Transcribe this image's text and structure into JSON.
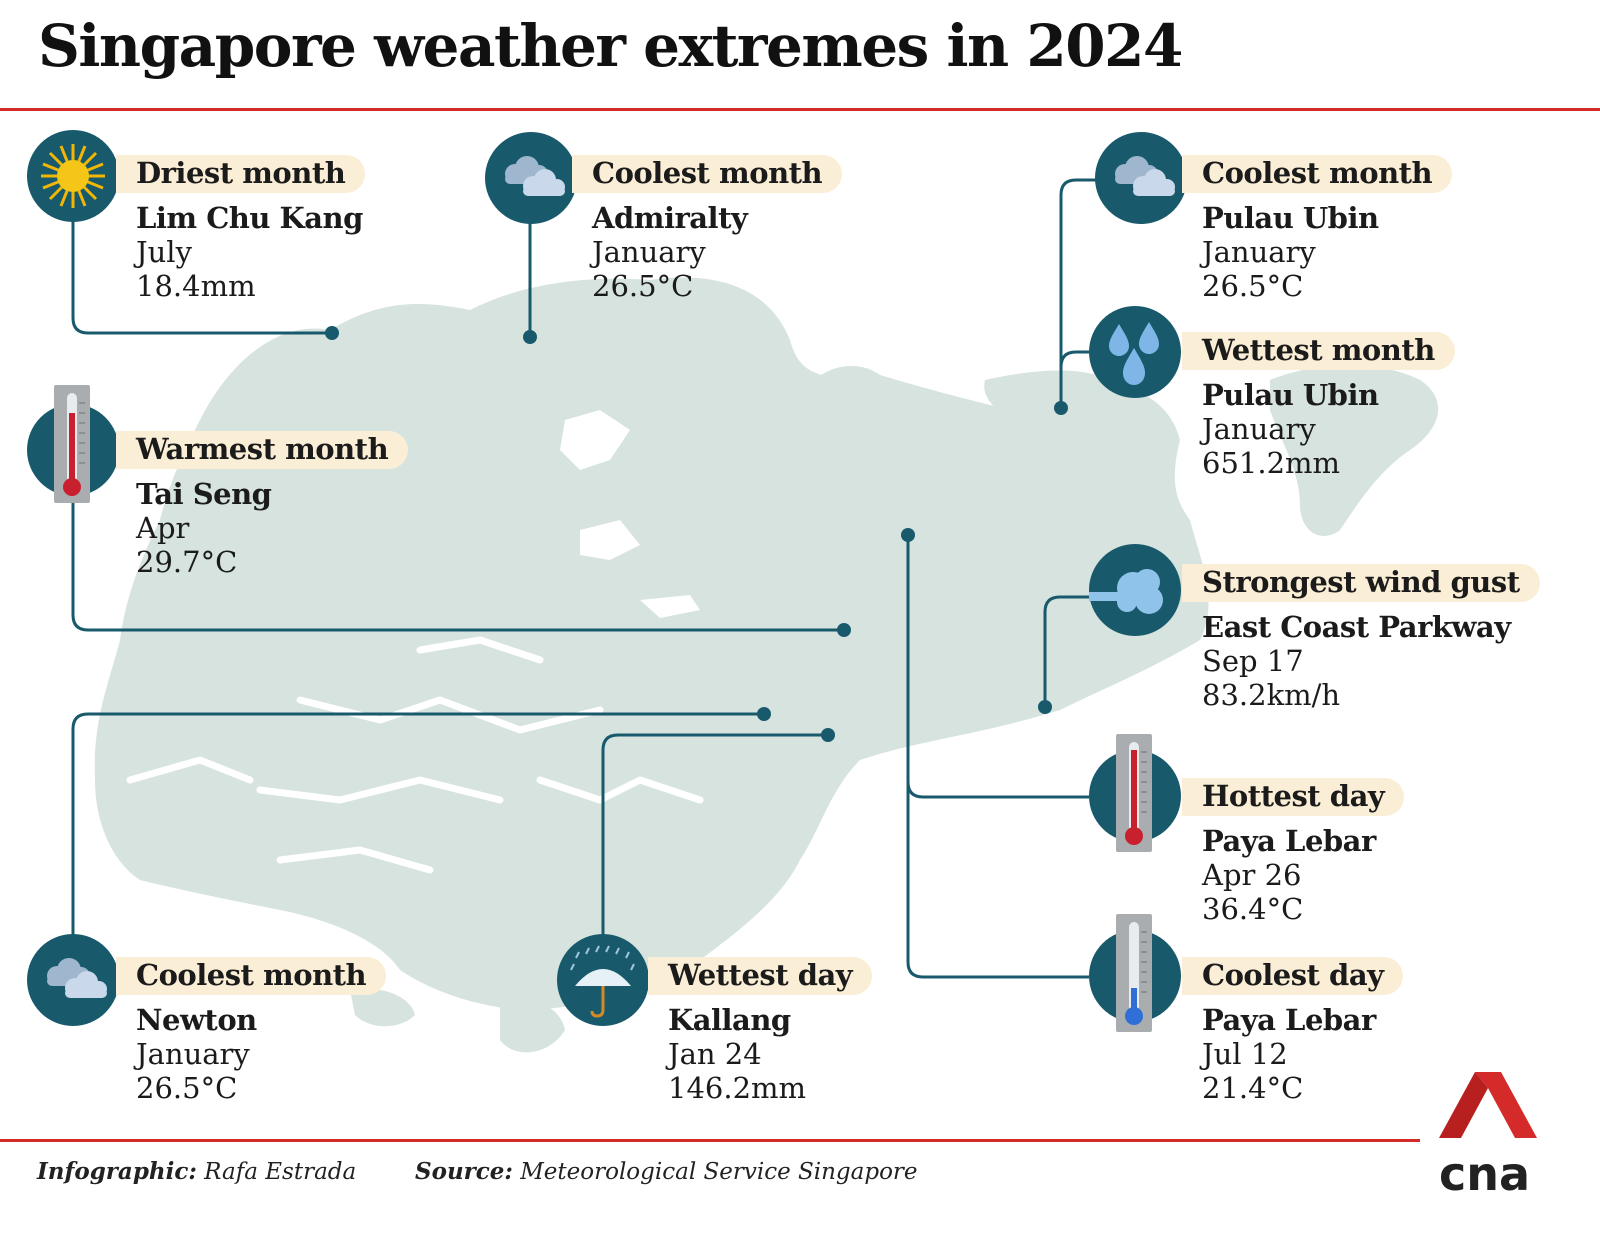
{
  "title": "Singapore weather extremes in 2024",
  "colors": {
    "accent_red": "#d42a2a",
    "icon_teal": "#185a6c",
    "map_land": "#d6e3df",
    "label_bg": "#fbeed6"
  },
  "extremes": [
    {
      "id": "driest-month",
      "icon": "sun-icon",
      "label": "Driest month",
      "place": "Lim Chu Kang",
      "when": "July",
      "value": "18.4mm"
    },
    {
      "id": "coolest-month-admiralty",
      "icon": "cloud-icon",
      "label": "Coolest month",
      "place": "Admiralty",
      "when": "January",
      "value": "26.5°C"
    },
    {
      "id": "coolest-month-pulau-ubin",
      "icon": "cloud-icon",
      "label": "Coolest month",
      "place": "Pulau Ubin",
      "when": "January",
      "value": "26.5°C"
    },
    {
      "id": "wettest-month",
      "icon": "raindrops-icon",
      "label": "Wettest month",
      "place": "Pulau Ubin",
      "when": "January",
      "value": "651.2mm"
    },
    {
      "id": "warmest-month",
      "icon": "thermometer-warm-icon",
      "label": "Warmest month",
      "place": "Tai Seng",
      "when": "Apr",
      "value": "29.7°C"
    },
    {
      "id": "strongest-wind-gust",
      "icon": "wind-icon",
      "label": "Strongest wind gust",
      "place": "East Coast Parkway",
      "when": "Sep 17",
      "value": "83.2km/h"
    },
    {
      "id": "hottest-day",
      "icon": "thermometer-hot-icon",
      "label": "Hottest day",
      "place": "Paya Lebar",
      "when": "Apr 26",
      "value": "36.4°C"
    },
    {
      "id": "coolest-day",
      "icon": "thermometer-cold-icon",
      "label": "Coolest day",
      "place": "Paya Lebar",
      "when": "Jul 12",
      "value": "21.4°C"
    },
    {
      "id": "coolest-month-newton",
      "icon": "cloud-icon",
      "label": "Coolest month",
      "place": "Newton",
      "when": "January",
      "value": "26.5°C"
    },
    {
      "id": "wettest-day",
      "icon": "umbrella-rain-icon",
      "label": "Wettest day",
      "place": "Kallang",
      "when": "Jan 24",
      "value": "146.2mm"
    }
  ],
  "footer": {
    "credit_label": "Infographic:",
    "credit_value": "Rafa Estrada",
    "source_label": "Source:",
    "source_value": "Meteorological Service Singapore"
  },
  "logo_text": "cna"
}
